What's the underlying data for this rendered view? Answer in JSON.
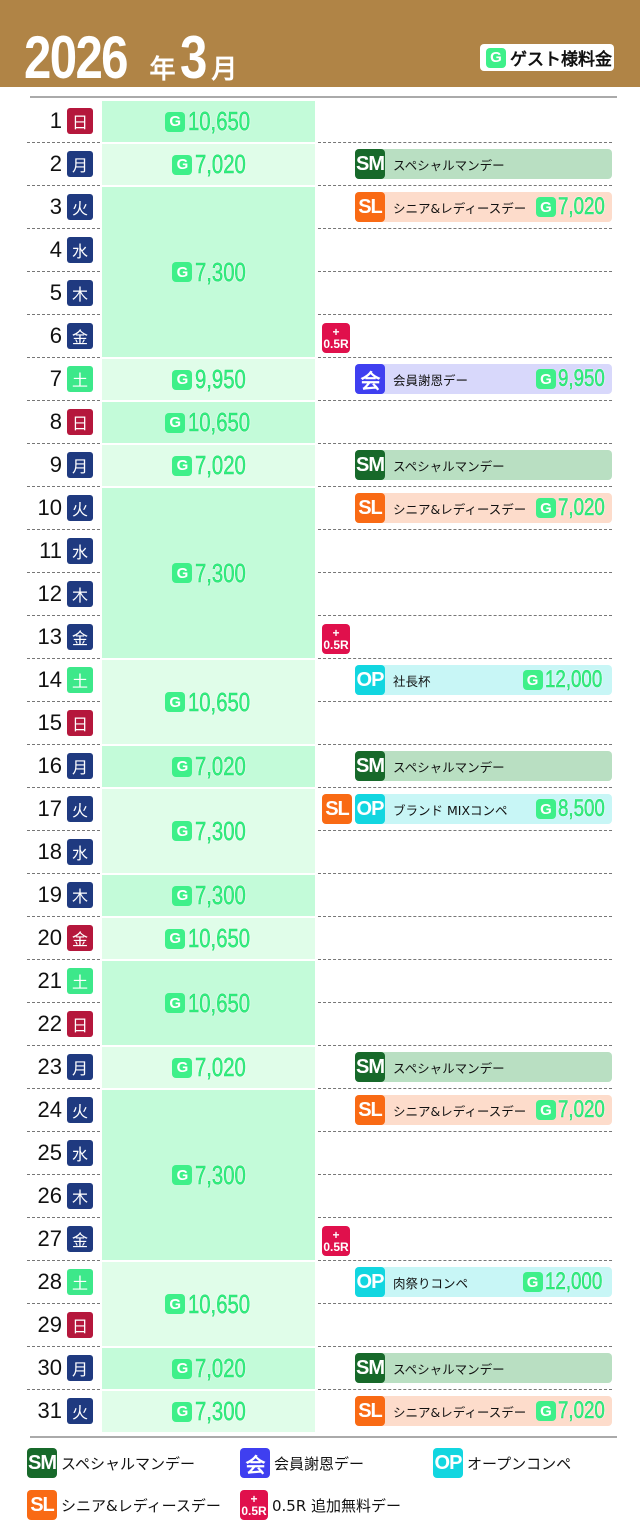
{
  "header": {
    "year": "2026",
    "year_suffix": "年",
    "month": "3",
    "month_suffix": "月",
    "legend_g": "G",
    "legend_label": "ゲスト様料金"
  },
  "colors": {
    "header": "#b08446",
    "price_dark": "#c3fbd9",
    "price_light": "#e0fde9",
    "sun": "#b5173c",
    "sat": "#3de88a",
    "weekday": "#1f3a80",
    "holiday": "#b5173c"
  },
  "days": [
    {
      "d": "1",
      "w": "日",
      "t": "sun"
    },
    {
      "d": "2",
      "w": "月",
      "t": "wk"
    },
    {
      "d": "3",
      "w": "火",
      "t": "wk"
    },
    {
      "d": "4",
      "w": "水",
      "t": "wk"
    },
    {
      "d": "5",
      "w": "木",
      "t": "wk"
    },
    {
      "d": "6",
      "w": "金",
      "t": "wk"
    },
    {
      "d": "7",
      "w": "土",
      "t": "sat"
    },
    {
      "d": "8",
      "w": "日",
      "t": "sun"
    },
    {
      "d": "9",
      "w": "月",
      "t": "wk"
    },
    {
      "d": "10",
      "w": "火",
      "t": "wk"
    },
    {
      "d": "11",
      "w": "水",
      "t": "wk"
    },
    {
      "d": "12",
      "w": "木",
      "t": "wk"
    },
    {
      "d": "13",
      "w": "金",
      "t": "wk"
    },
    {
      "d": "14",
      "w": "土",
      "t": "sat"
    },
    {
      "d": "15",
      "w": "日",
      "t": "sun"
    },
    {
      "d": "16",
      "w": "月",
      "t": "wk"
    },
    {
      "d": "17",
      "w": "火",
      "t": "wk"
    },
    {
      "d": "18",
      "w": "水",
      "t": "wk"
    },
    {
      "d": "19",
      "w": "木",
      "t": "wk"
    },
    {
      "d": "20",
      "w": "金",
      "t": "sun"
    },
    {
      "d": "21",
      "w": "土",
      "t": "sat"
    },
    {
      "d": "22",
      "w": "日",
      "t": "sun"
    },
    {
      "d": "23",
      "w": "月",
      "t": "wk"
    },
    {
      "d": "24",
      "w": "火",
      "t": "wk"
    },
    {
      "d": "25",
      "w": "水",
      "t": "wk"
    },
    {
      "d": "26",
      "w": "木",
      "t": "wk"
    },
    {
      "d": "27",
      "w": "金",
      "t": "wk"
    },
    {
      "d": "28",
      "w": "土",
      "t": "sat"
    },
    {
      "d": "29",
      "w": "日",
      "t": "sun"
    },
    {
      "d": "30",
      "w": "月",
      "t": "wk"
    },
    {
      "d": "31",
      "w": "火",
      "t": "wk"
    }
  ],
  "price_groups": [
    {
      "from": 1,
      "to": 1,
      "price": "10,650"
    },
    {
      "from": 2,
      "to": 2,
      "price": "7,020"
    },
    {
      "from": 3,
      "to": 6,
      "price": "7,300"
    },
    {
      "from": 7,
      "to": 7,
      "price": "9,950"
    },
    {
      "from": 8,
      "to": 8,
      "price": "10,650"
    },
    {
      "from": 9,
      "to": 9,
      "price": "7,020"
    },
    {
      "from": 10,
      "to": 13,
      "price": "7,300"
    },
    {
      "from": 14,
      "to": 15,
      "price": "10,650"
    },
    {
      "from": 16,
      "to": 16,
      "price": "7,020"
    },
    {
      "from": 17,
      "to": 18,
      "price": "7,300"
    },
    {
      "from": 19,
      "to": 19,
      "price": "7,300"
    },
    {
      "from": 20,
      "to": 20,
      "price": "10,650"
    },
    {
      "from": 21,
      "to": 22,
      "price": "10,650"
    },
    {
      "from": 23,
      "to": 23,
      "price": "7,020"
    },
    {
      "from": 24,
      "to": 27,
      "price": "7,300"
    },
    {
      "from": 28,
      "to": 29,
      "price": "10,650"
    },
    {
      "from": 30,
      "to": 30,
      "price": "7,020"
    },
    {
      "from": 31,
      "to": 31,
      "price": "7,300"
    }
  ],
  "event_types": {
    "SM": {
      "badge": "SM",
      "bg": "#b9dfc2",
      "color": "#17692a"
    },
    "SL": {
      "badge": "SL",
      "bg": "#fddccb",
      "color": "#f96a14"
    },
    "KAI": {
      "badge": "会",
      "bg": "#d8d8fb",
      "color": "#3f3ff0"
    },
    "OP": {
      "badge": "OP",
      "bg": "#c8f6f6",
      "color": "#12d6e0"
    }
  },
  "events": [
    {
      "day": 2,
      "type": "SM",
      "label": "スペシャルマンデー"
    },
    {
      "day": 3,
      "type": "SL",
      "label": "シニア&レディースデー",
      "price": "7,020"
    },
    {
      "day": 6,
      "extra": "0.5R"
    },
    {
      "day": 7,
      "type": "KAI",
      "label": "会員謝恩デー",
      "price": "9,950"
    },
    {
      "day": 9,
      "type": "SM",
      "label": "スペシャルマンデー"
    },
    {
      "day": 10,
      "type": "SL",
      "label": "シニア&レディースデー",
      "price": "7,020"
    },
    {
      "day": 13,
      "extra": "0.5R"
    },
    {
      "day": 14,
      "type": "OP",
      "label": "社長杯",
      "price": "12,000"
    },
    {
      "day": 16,
      "type": "SM",
      "label": "スペシャルマンデー"
    },
    {
      "day": 17,
      "type": "OP",
      "extra": "SL",
      "label": "ブランド MIXコンペ",
      "price": "8,500"
    },
    {
      "day": 23,
      "type": "SM",
      "label": "スペシャルマンデー"
    },
    {
      "day": 24,
      "type": "SL",
      "label": "シニア&レディースデー",
      "price": "7,020"
    },
    {
      "day": 27,
      "extra": "0.5R"
    },
    {
      "day": 28,
      "type": "OP",
      "label": "肉祭りコンペ",
      "price": "12,000"
    },
    {
      "day": 30,
      "type": "SM",
      "label": "スペシャルマンデー"
    },
    {
      "day": 31,
      "type": "SL",
      "label": "シニア&レディースデー",
      "price": "7,020"
    }
  ],
  "r05": {
    "plus": "+",
    "label": "0.5R"
  },
  "legend": [
    {
      "type": "SM",
      "label": "スペシャルマンデー"
    },
    {
      "type": "KAI",
      "label": "会員謝恩デー"
    },
    {
      "type": "OP",
      "label": "オープンコンペ"
    },
    {
      "type": "SL",
      "label": "シニア&レディースデー"
    },
    {
      "type": "R05",
      "label": "0.5R 追加無料デー"
    }
  ]
}
